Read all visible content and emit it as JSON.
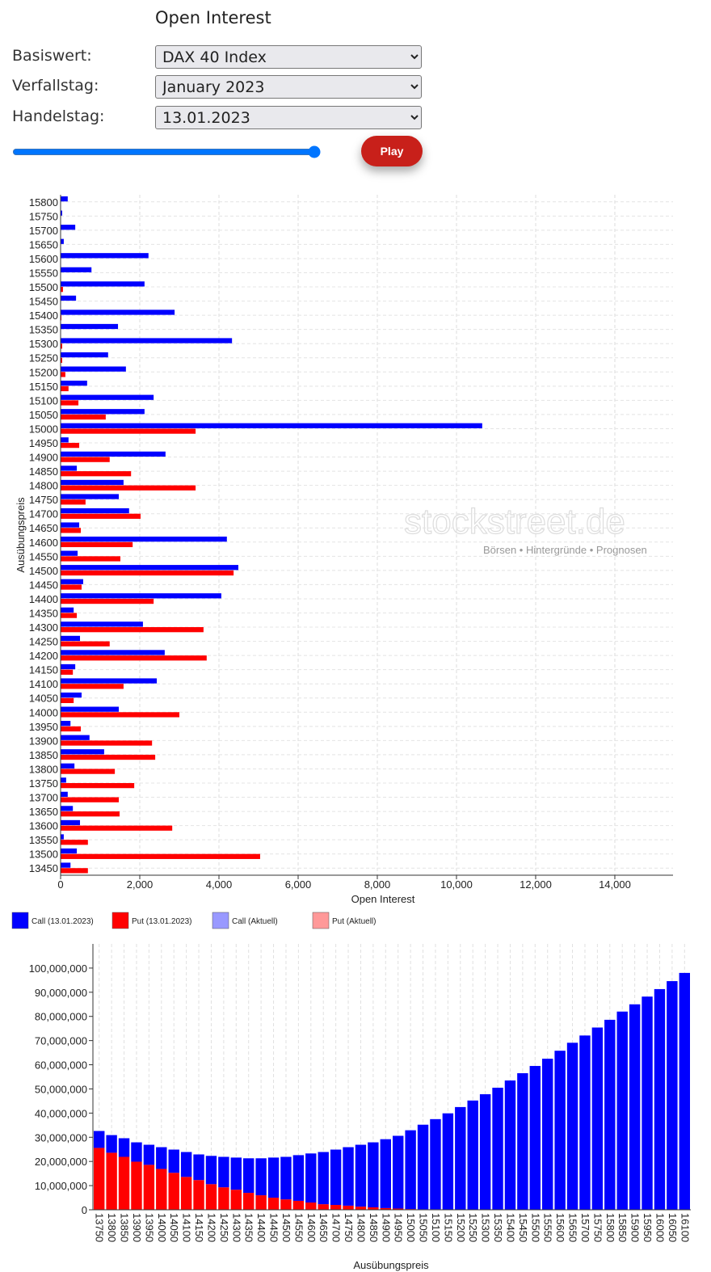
{
  "header": {
    "title": "Open Interest"
  },
  "form": {
    "underlying_label": "Basiswert:",
    "underlying": "DAX 40 Index",
    "expiry_label": "Verfallstag:",
    "expiry": "January 2023",
    "trade_day_label": "Handelstag:",
    "trade_day": "13.01.2023",
    "play": "Play"
  },
  "watermark": {
    "brand": "stockstreet.de",
    "tagline": "Börsen • Hintergründe • Prognosen"
  },
  "chart_data": [
    {
      "type": "barh",
      "xlabel": "Open Interest",
      "ylabel": "Ausübungspreis",
      "grid": true,
      "categories": [
        "15800",
        "15750",
        "15700",
        "15650",
        "15600",
        "15550",
        "15500",
        "15450",
        "15400",
        "15350",
        "15300",
        "15250",
        "15200",
        "15150",
        "15100",
        "15050",
        "15000",
        "14950",
        "14900",
        "14850",
        "14800",
        "14750",
        "14700",
        "14650",
        "14600",
        "14550",
        "14500",
        "14450",
        "14400",
        "14350",
        "14300",
        "14250",
        "14200",
        "14150",
        "14100",
        "14050",
        "14000",
        "13950",
        "13900",
        "13850",
        "13800",
        "13750",
        "13700",
        "13650",
        "13600",
        "13550",
        "13500",
        "13450"
      ],
      "xlim": [
        0,
        15470
      ],
      "xticks": [
        0,
        {
          "value": 2000,
          "label": "2,000"
        },
        {
          "value": 4000,
          "label": "4,000"
        },
        {
          "value": 6000,
          "label": "6,000"
        },
        {
          "value": 8000,
          "label": "8,000"
        },
        {
          "value": 10000,
          "label": "10,000"
        },
        {
          "value": 12000,
          "label": "12,000"
        },
        {
          "value": 14000,
          "label": "14,000"
        }
      ],
      "series": [
        {
          "name": "Call (13.01.2023)",
          "color": "#0000ff",
          "values": [
            180,
            40,
            370,
            80,
            2220,
            780,
            2120,
            390,
            2880,
            1450,
            4330,
            1200,
            1650,
            670,
            2350,
            2120,
            10650,
            200,
            2650,
            410,
            1590,
            1470,
            1730,
            470,
            4200,
            430,
            4490,
            570,
            4060,
            330,
            2080,
            490,
            2630,
            370,
            2430,
            530,
            1470,
            250,
            730,
            1100,
            350,
            140,
            180,
            310,
            490,
            80,
            410,
            250
          ]
        },
        {
          "name": "Put (13.01.2023)",
          "color": "#ff0000",
          "values": [
            0,
            0,
            0,
            0,
            0,
            0,
            60,
            0,
            20,
            0,
            40,
            40,
            120,
            200,
            450,
            1140,
            3410,
            470,
            1240,
            1780,
            3410,
            630,
            2020,
            510,
            1820,
            1510,
            4370,
            530,
            2350,
            410,
            3610,
            1240,
            3690,
            310,
            1590,
            330,
            3000,
            510,
            2310,
            2390,
            1370,
            1860,
            1470,
            1490,
            2820,
            690,
            5040,
            690
          ]
        }
      ],
      "legend_extra": [
        {
          "name": "Call (Aktuell)",
          "color": "#9999ff"
        },
        {
          "name": "Put (Aktuell)",
          "color": "#ff9999"
        }
      ]
    },
    {
      "type": "bar",
      "stacked": true,
      "xlabel": "Ausübungspreis",
      "grid": true,
      "categories": [
        "13750",
        "13800",
        "13850",
        "13900",
        "13950",
        "14000",
        "14050",
        "14100",
        "14150",
        "14200",
        "14250",
        "14300",
        "14350",
        "14400",
        "14450",
        "14500",
        "14550",
        "14600",
        "14650",
        "14700",
        "14750",
        "14800",
        "14850",
        "14900",
        "14950",
        "15000",
        "15050",
        "15100",
        "15150",
        "15200",
        "15250",
        "15300",
        "15350",
        "15400",
        "15450",
        "15500",
        "15550",
        "15600",
        "15650",
        "15700",
        "15750",
        "15800",
        "15850",
        "15900",
        "15950",
        "16000",
        "16050",
        "16100"
      ],
      "ylim": [
        0,
        110000000
      ],
      "yticks": [
        0,
        {
          "value": 10000000,
          "label": "10,000,000"
        },
        {
          "value": 20000000,
          "label": "20,000,000"
        },
        {
          "value": 30000000,
          "label": "30,000,000"
        },
        {
          "value": 40000000,
          "label": "40,000,000"
        },
        {
          "value": 50000000,
          "label": "50,000,000"
        },
        {
          "value": 60000000,
          "label": "60,000,000"
        },
        {
          "value": 70000000,
          "label": "70,000,000"
        },
        {
          "value": 80000000,
          "label": "80,000,000"
        },
        {
          "value": 90000000,
          "label": "90,000,000"
        },
        {
          "value": 100000000,
          "label": "100,000,000"
        }
      ],
      "series": [
        {
          "name": "Put",
          "color": "#ff0000",
          "values": [
            25600000,
            23600000,
            21900000,
            19900000,
            18600000,
            16900000,
            15300000,
            13600000,
            12300000,
            10600000,
            9300000,
            8300000,
            7000000,
            6000000,
            5000000,
            4300000,
            3700000,
            3000000,
            2300000,
            2000000,
            1700000,
            1300000,
            1000000,
            700000,
            500000,
            300000,
            200000,
            200000,
            100000,
            100000,
            100000,
            0,
            0,
            0,
            0,
            0,
            0,
            0,
            0,
            0,
            0,
            0,
            0,
            0,
            0,
            0,
            0,
            0
          ]
        },
        {
          "name": "Call",
          "color": "#0000ff",
          "values": [
            7000000,
            7300000,
            7700000,
            8000000,
            8300000,
            9000000,
            9600000,
            10300000,
            10600000,
            11700000,
            12600000,
            13300000,
            14300000,
            15300000,
            16600000,
            17600000,
            18900000,
            20300000,
            21600000,
            22900000,
            24200000,
            25600000,
            26900000,
            28500000,
            30100000,
            32600000,
            35000000,
            37300000,
            39800000,
            42400000,
            45100000,
            47800000,
            50500000,
            53500000,
            56500000,
            59500000,
            62500000,
            65800000,
            69100000,
            72100000,
            75400000,
            78600000,
            82000000,
            85000000,
            88200000,
            91300000,
            94600000,
            98000000
          ]
        }
      ]
    }
  ]
}
